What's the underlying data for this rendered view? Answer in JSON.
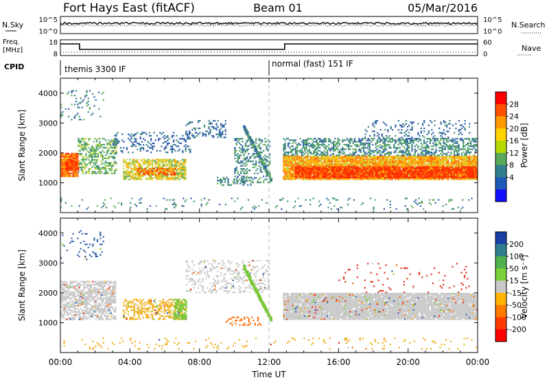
{
  "header": {
    "site": "Fort Hays East (fitACF)",
    "beam": "Beam 01",
    "date": "05/Mar/2016"
  },
  "top_panels": {
    "nsky_label": "N.Sky",
    "nsky_ticks": [
      "10^5",
      "10^0"
    ],
    "nsearch_label": "N.Search",
    "nsearch_ticks": [
      "10^5",
      "10^0"
    ],
    "freq_label_1": "Freq.",
    "freq_label_2": "[MHz]",
    "freq_ticks": [
      "18",
      "8"
    ],
    "nave_label": "Nave",
    "nave_ticks": [
      "60",
      "0"
    ],
    "cpid_label": "CPID",
    "cpid_segments": [
      {
        "text": "themis 3300 IF",
        "start_h": 0,
        "end_h": 12
      },
      {
        "text": "normal (fast) 151 IF",
        "start_h": 12,
        "end_h": 24
      }
    ]
  },
  "chart_data": [
    {
      "type": "heatmap",
      "name": "power-panel",
      "ylabel": "Slant Range [km]",
      "yticks": [
        1000,
        2000,
        3000,
        4000
      ],
      "ylim": [
        0,
        4500
      ],
      "xlim": [
        0,
        24
      ],
      "colorbar": {
        "label": "Power [dB]",
        "ticks": [
          "28",
          "24",
          "20",
          "16",
          "12",
          "8",
          "4"
        ],
        "colors": [
          "#ff0000",
          "#ff5000",
          "#ff9a00",
          "#ffd200",
          "#b6d800",
          "#5aa85a",
          "#2f7f8f",
          "#205ab8",
          "#1010ff"
        ]
      },
      "cluster_color_ramp": [
        "#2f5fa8",
        "#3c8a7a",
        "#5fb05a",
        "#c6d23a",
        "#ffb000",
        "#ff6a00",
        "#ff2a00"
      ],
      "clusters": [
        {
          "x0": 0.0,
          "x1": 1.0,
          "y0": 1200,
          "y1": 2000,
          "level": 5,
          "density": 0.95
        },
        {
          "x0": 0.3,
          "x1": 1.0,
          "y0": 1400,
          "y1": 1750,
          "level": 6,
          "density": 0.9
        },
        {
          "x0": 1.0,
          "x1": 3.2,
          "y0": 1300,
          "y1": 2500,
          "level": 2,
          "density": 0.5
        },
        {
          "x0": 3.0,
          "x1": 7.5,
          "y0": 2000,
          "y1": 2700,
          "level": 0,
          "density": 0.25
        },
        {
          "x0": 3.6,
          "x1": 7.2,
          "y0": 1100,
          "y1": 1800,
          "level": 3,
          "density": 0.75
        },
        {
          "x0": 4.4,
          "x1": 6.6,
          "y0": 1250,
          "y1": 1500,
          "level": 5,
          "density": 0.7
        },
        {
          "x0": 7.2,
          "x1": 9.5,
          "y0": 2500,
          "y1": 3100,
          "level": 0,
          "density": 0.25
        },
        {
          "x0": 9.0,
          "x1": 11.0,
          "y0": 900,
          "y1": 1200,
          "level": 1,
          "density": 0.4
        },
        {
          "x0": 10.0,
          "x1": 12.0,
          "y0": 1000,
          "y1": 2500,
          "level": 1,
          "density": 0.35
        },
        {
          "x0": 12.8,
          "x1": 24.0,
          "y0": 1900,
          "y1": 2500,
          "level": 1,
          "density": 0.5
        },
        {
          "x0": 12.8,
          "x1": 24.0,
          "y0": 1100,
          "y1": 1900,
          "level": 4,
          "density": 0.95
        },
        {
          "x0": 13.5,
          "x1": 24.0,
          "y0": 1150,
          "y1": 1550,
          "level": 6,
          "density": 0.9
        },
        {
          "x0": 17.5,
          "x1": 23.5,
          "y0": 2400,
          "y1": 3100,
          "level": 0,
          "density": 0.15
        },
        {
          "x0": 0.0,
          "x1": 24.0,
          "y0": 100,
          "y1": 500,
          "level": 1,
          "density": 0.08
        },
        {
          "x0": 0.0,
          "x1": 2.5,
          "y0": 3100,
          "y1": 4100,
          "level": 1,
          "density": 0.1
        }
      ]
    },
    {
      "type": "heatmap",
      "name": "velocity-panel",
      "ylabel": "Slant Range [km]",
      "yticks": [
        1000,
        2000,
        3000,
        4000
      ],
      "ylim": [
        0,
        4500
      ],
      "xlim": [
        0,
        24
      ],
      "xticks": [
        "00:00",
        "04:00",
        "08:00",
        "12:00",
        "16:00",
        "20:00",
        "00:00"
      ],
      "xlabel": "Time UT",
      "colorbar": {
        "label": "Velocity [m s⁻¹]",
        "ticks": [
          "200",
          "100",
          "50",
          "15",
          "-15",
          "-50",
          "-100",
          "-200"
        ],
        "colors": [
          "#1a3fa6",
          "#2f7f8f",
          "#4fb04f",
          "#7ad13a",
          "#c8c8c8",
          "#ffb400",
          "#ff7a00",
          "#ff3a00",
          "#ff0000"
        ]
      },
      "cluster_colors": [
        "#c8c8c8",
        "#f0b020",
        "#7ac83a",
        "#ff6a00",
        "#2f5fa8",
        "#e03020"
      ],
      "clusters": [
        {
          "x0": 0.0,
          "x1": 3.2,
          "y0": 1100,
          "y1": 2400,
          "cidx": 0,
          "density": 0.7
        },
        {
          "x0": 3.6,
          "x1": 7.2,
          "y0": 1100,
          "y1": 1800,
          "cidx": 1,
          "density": 0.5
        },
        {
          "x0": 6.5,
          "x1": 7.2,
          "y0": 1100,
          "y1": 1800,
          "cidx": 2,
          "density": 0.6
        },
        {
          "x0": 7.2,
          "x1": 12.0,
          "y0": 2000,
          "y1": 3100,
          "cidx": 0,
          "density": 0.25
        },
        {
          "x0": 9.5,
          "x1": 11.5,
          "y0": 900,
          "y1": 1200,
          "cidx": 3,
          "density": 0.35
        },
        {
          "x0": 12.8,
          "x1": 24.0,
          "y0": 1100,
          "y1": 2000,
          "cidx": 0,
          "density": 0.95
        },
        {
          "x0": 16.0,
          "x1": 23.5,
          "y0": 2000,
          "y1": 3000,
          "cidx": 5,
          "density": 0.05
        },
        {
          "x0": 0.0,
          "x1": 2.5,
          "y0": 3100,
          "y1": 4100,
          "cidx": 4,
          "density": 0.08
        },
        {
          "x0": 0.0,
          "x1": 24.0,
          "y0": 100,
          "y1": 500,
          "cidx": 1,
          "density": 0.06
        }
      ]
    }
  ]
}
